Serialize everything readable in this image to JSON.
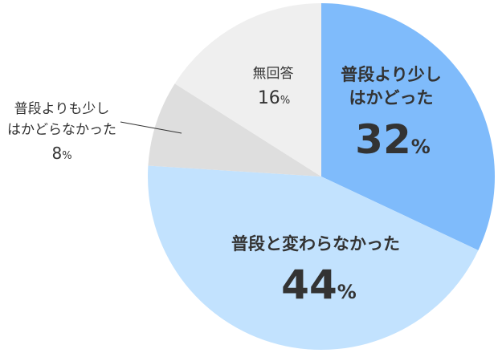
{
  "chart_data": {
    "type": "pie",
    "start": "top",
    "direction": "clockwise",
    "slices": [
      {
        "label_lines": [
          "普段より少し",
          "はかどった"
        ],
        "value": 32,
        "value_text": "32",
        "unit": "%",
        "color": "#7fbbfb"
      },
      {
        "label_lines": [
          "普段と変わらなかった"
        ],
        "value": 44,
        "value_text": "44",
        "unit": "%",
        "color": "#c2e2fe"
      },
      {
        "label_lines": [
          "普段よりも少し",
          "はかどらなかった"
        ],
        "value": 8,
        "value_text": "8",
        "unit": "%",
        "color": "#dedede"
      },
      {
        "label_lines": [
          "無回答"
        ],
        "value": 16,
        "value_text": "16",
        "unit": "%",
        "color": "#efefef"
      }
    ],
    "title": "",
    "legend": "none"
  }
}
